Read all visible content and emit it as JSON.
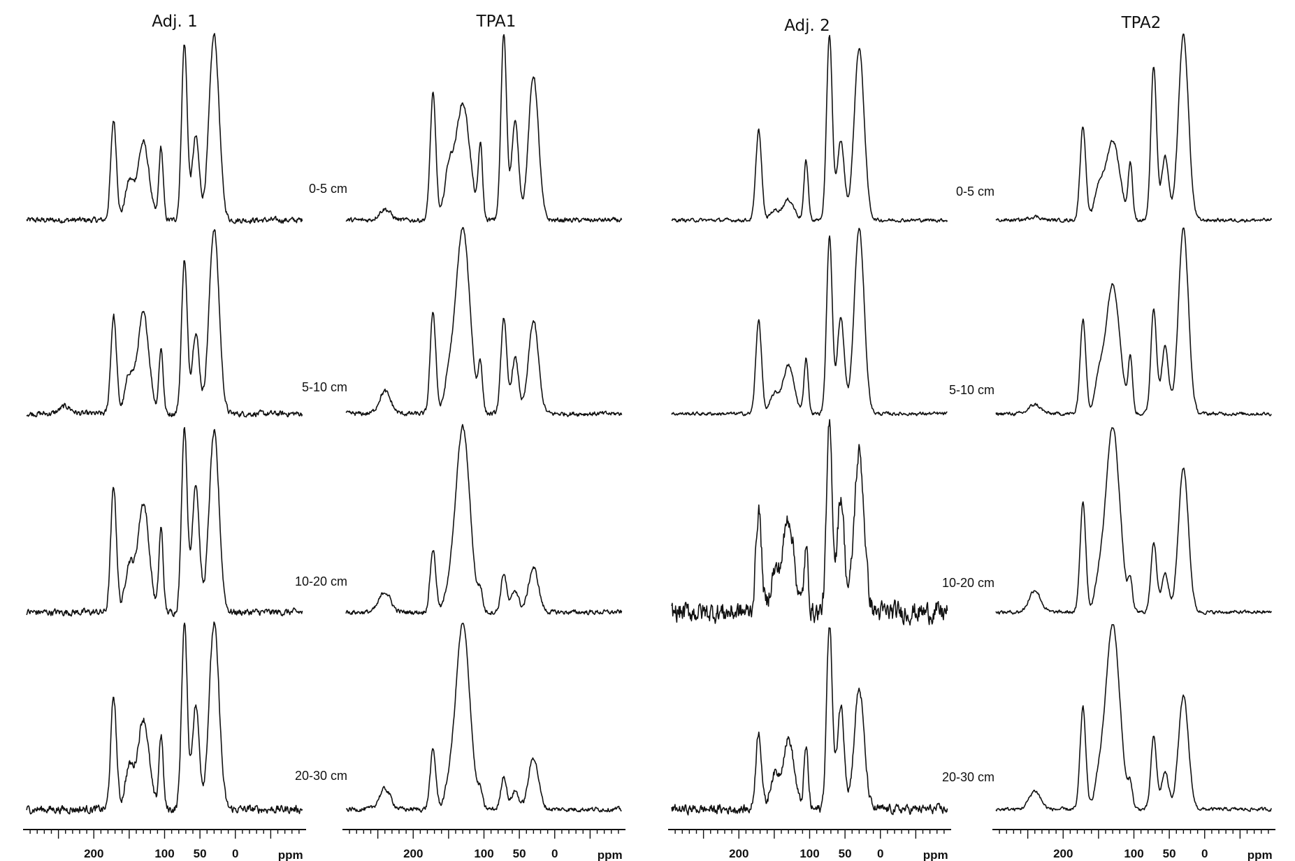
{
  "chart_data": {
    "type": "line",
    "description_kind": "stacked 13C NMR spectra grid",
    "x_unit": "ppm",
    "xlim": [
      300,
      -100
    ],
    "x_reversed": true,
    "tick_labels": [
      "200",
      "100",
      "50",
      "0"
    ],
    "tick_label_values": [
      200,
      100,
      50,
      0
    ],
    "major_tick_step": 50,
    "minor_tick_step": 10,
    "axis_unit_label": "ppm",
    "grid": false,
    "line_color": "#111111",
    "columns": [
      "Adj. 1",
      "TPA1",
      "Adj. 2",
      "TPA2"
    ],
    "rows": [
      "0-5 cm",
      "5-10 cm",
      "10-20 cm",
      "20-30 cm"
    ],
    "peak_positions_ppm": [
      240,
      172,
      150,
      130,
      105,
      72,
      56,
      30
    ],
    "peak_widths_ppm": [
      8,
      4,
      6,
      8,
      3,
      4,
      5,
      7
    ],
    "spectra": [
      [
        {
          "intensities": [
            0.0,
            0.54,
            0.2,
            0.42,
            0.39,
            0.95,
            0.45,
            1.0
          ],
          "noise": 0.025
        },
        {
          "intensities": [
            0.04,
            0.53,
            0.2,
            0.54,
            0.35,
            0.83,
            0.44,
            1.0
          ],
          "noise": 0.025
        },
        {
          "intensities": [
            0.0,
            0.68,
            0.25,
            0.59,
            0.45,
            1.0,
            0.7,
            0.97
          ],
          "noise": 0.03
        },
        {
          "intensities": [
            0.0,
            0.61,
            0.22,
            0.49,
            0.4,
            1.0,
            0.56,
            1.0
          ],
          "noise": 0.035
        }
      ],
      [
        {
          "intensities": [
            0.06,
            0.68,
            0.24,
            0.63,
            0.39,
            1.0,
            0.53,
            0.78
          ],
          "noise": 0.02
        },
        {
          "intensities": [
            0.12,
            0.55,
            0.15,
            1.0,
            0.25,
            0.52,
            0.3,
            0.5
          ],
          "noise": 0.02
        },
        {
          "intensities": [
            0.11,
            0.34,
            0.08,
            1.0,
            0.1,
            0.21,
            0.12,
            0.24
          ],
          "noise": 0.02
        },
        {
          "intensities": [
            0.11,
            0.32,
            0.08,
            1.0,
            0.08,
            0.18,
            0.1,
            0.28
          ],
          "noise": 0.02
        }
      ],
      [
        {
          "intensities": [
            0.0,
            0.49,
            0.05,
            0.11,
            0.32,
            1.0,
            0.43,
            0.93
          ],
          "noise": 0.015
        },
        {
          "intensities": [
            0.0,
            0.51,
            0.1,
            0.26,
            0.3,
            0.95,
            0.52,
            1.0
          ],
          "noise": 0.015
        },
        {
          "intensities": [
            0.0,
            0.55,
            0.2,
            0.51,
            0.33,
            1.0,
            0.63,
            0.86
          ],
          "noise": 0.09
        },
        {
          "intensities": [
            0.0,
            0.42,
            0.18,
            0.38,
            0.33,
            1.0,
            0.56,
            0.65
          ],
          "noise": 0.04
        }
      ],
      [
        {
          "intensities": [
            0.02,
            0.51,
            0.15,
            0.43,
            0.3,
            0.83,
            0.34,
            1.0
          ],
          "noise": 0.015
        },
        {
          "intensities": [
            0.05,
            0.51,
            0.15,
            0.7,
            0.29,
            0.57,
            0.36,
            1.0
          ],
          "noise": 0.015
        },
        {
          "intensities": [
            0.12,
            0.6,
            0.12,
            1.0,
            0.15,
            0.38,
            0.21,
            0.78
          ],
          "noise": 0.015
        },
        {
          "intensities": [
            0.1,
            0.55,
            0.12,
            1.0,
            0.12,
            0.39,
            0.2,
            0.61
          ],
          "noise": 0.015
        }
      ]
    ]
  }
}
